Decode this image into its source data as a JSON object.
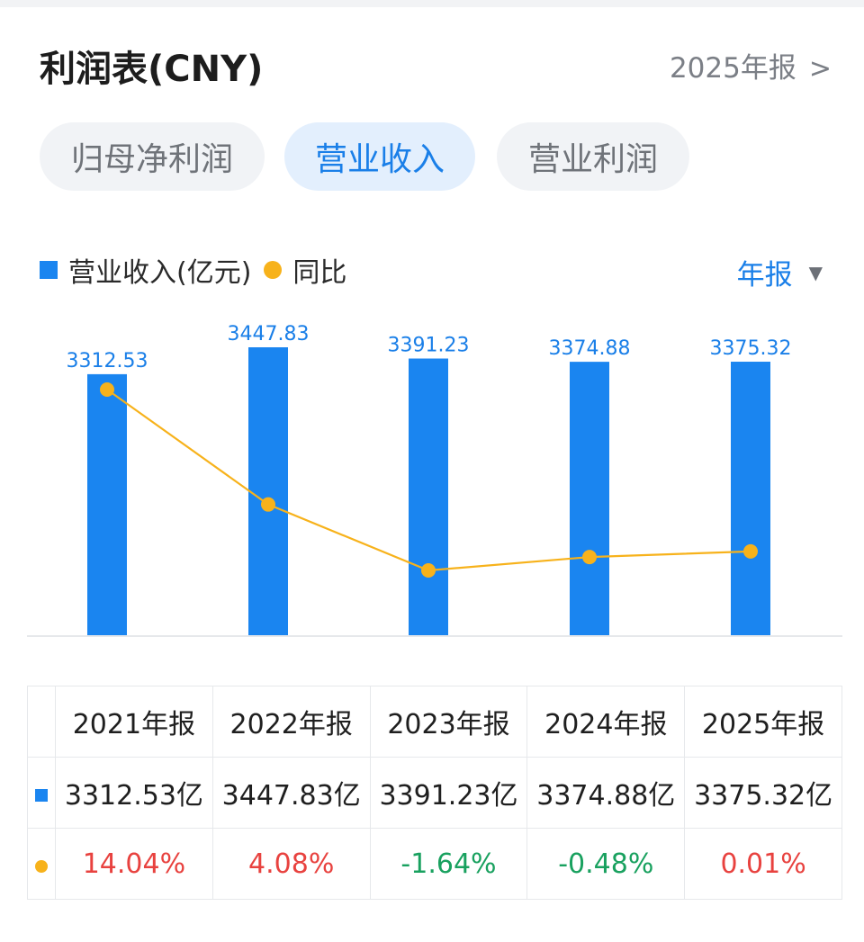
{
  "header": {
    "title": "利润表(CNY)",
    "report_label": "2025年报",
    "report_chevron": ">"
  },
  "tabs": [
    {
      "label": "归母净利润",
      "active": false
    },
    {
      "label": "营业收入",
      "active": true
    },
    {
      "label": "营业利润",
      "active": false
    }
  ],
  "legend": {
    "bar_label": "营业收入(亿元)",
    "line_label": "同比"
  },
  "period_select": {
    "label": "年报",
    "arrow": "▼"
  },
  "colors": {
    "bar": "#1a85f0",
    "line": "#f7b21b",
    "accent": "#1a7fe8",
    "positive": "#e8423f",
    "negative": "#19a15f"
  },
  "chart_data": {
    "type": "bar",
    "categories": [
      "2021年报",
      "2022年报",
      "2023年报",
      "2024年报",
      "2025年报"
    ],
    "series": [
      {
        "name": "营业收入(亿元)",
        "type": "bar",
        "values": [
          3312.53,
          3447.83,
          3391.23,
          3374.88,
          3375.32
        ]
      },
      {
        "name": "同比",
        "type": "line",
        "values": [
          14.04,
          4.08,
          -1.64,
          -0.48,
          0.01
        ]
      }
    ],
    "bar_labels": [
      "3312.53",
      "3447.83",
      "3391.23",
      "3374.88",
      "3375.32"
    ],
    "grid": false
  },
  "table": {
    "headers": [
      "2021年报",
      "2022年报",
      "2023年报",
      "2024年报",
      "2025年报"
    ],
    "revenue": [
      "3312.53亿",
      "3447.83亿",
      "3391.23亿",
      "3374.88亿",
      "3375.32亿"
    ],
    "growth": [
      "14.04%",
      "4.08%",
      "-1.64%",
      "-0.48%",
      "0.01%"
    ]
  }
}
